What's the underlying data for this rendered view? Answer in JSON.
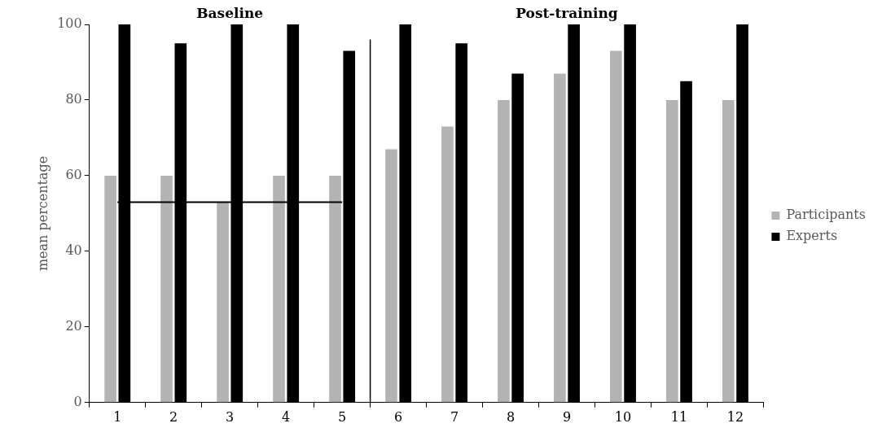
{
  "chart_data": {
    "type": "bar",
    "ylabel": "mean percentage",
    "x": [
      1,
      2,
      3,
      4,
      5,
      6,
      7,
      8,
      9,
      10,
      11,
      12
    ],
    "series": [
      {
        "name": "Participants",
        "color": "#b3b3b3",
        "values": [
          60,
          60,
          53,
          60,
          60,
          67,
          73,
          80,
          87,
          93,
          80,
          80
        ]
      },
      {
        "name": "Experts",
        "color": "#000000",
        "values": [
          100,
          95,
          100,
          100,
          93,
          100,
          95,
          87,
          100,
          100,
          85,
          100
        ]
      },
      {
        "type": "line",
        "color": "#000000",
        "x": [
          1,
          5
        ],
        "values": [
          53,
          53
        ]
      }
    ],
    "xlim": [
      0.5,
      12.5
    ],
    "xticks": [
      {
        "value": 0.5,
        "label": null
      },
      1,
      {
        "value": 1.5,
        "label": null
      },
      2,
      {
        "value": 2.5,
        "label": null
      },
      3,
      {
        "value": 3.5,
        "label": null
      },
      4,
      {
        "value": 4.5,
        "label": null
      },
      5,
      {
        "value": 5.5,
        "label": null
      },
      6,
      {
        "value": 6.5,
        "label": null
      },
      7,
      {
        "value": 7.5,
        "label": null
      },
      8,
      {
        "value": 8.5,
        "label": null
      },
      9,
      {
        "value": 9.5,
        "label": null
      },
      10,
      {
        "value": 10.5,
        "label": null
      },
      11,
      {
        "value": 11.5,
        "label": null
      },
      12,
      {
        "value": 12.5,
        "label": null
      }
    ],
    "ylim": [
      0,
      100
    ],
    "yticks": [
      0,
      20,
      40,
      60,
      80,
      100
    ],
    "grid": false,
    "legend": "right",
    "marker": "none",
    "ref_lines": [
      {
        "axis": "x",
        "value": 5.5,
        "color": "#000000"
      }
    ],
    "annotations": [
      "Baseline",
      "Post-training"
    ]
  }
}
